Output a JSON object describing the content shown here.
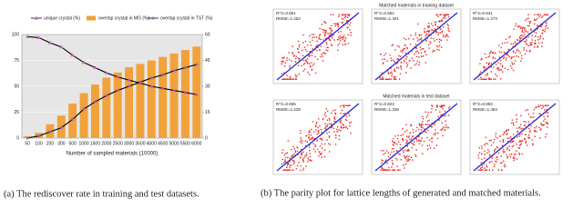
{
  "chart_data": [
    {
      "type": "combo",
      "x_label": "Number of sampled materials (10000)",
      "categories": [
        "50",
        "100",
        "200",
        "300",
        "500",
        "1000",
        "1500",
        "2000",
        "2500",
        "3000",
        "3500",
        "4000",
        "4500",
        "5000",
        "5500",
        "6000"
      ],
      "ylim": [
        0,
        100
      ],
      "yticks": [
        0,
        25,
        50,
        75,
        100
      ],
      "y2lim": [
        0,
        60
      ],
      "y2ticks": [
        0,
        15,
        30,
        45,
        60
      ],
      "grid": true,
      "line_color": "#000000",
      "background": "#e6e6e6",
      "series": [
        {
          "name": "unique crystal (%)",
          "type": "line",
          "marker": "triangle",
          "color": "#c65ac6",
          "values": [
            98,
            97,
            92,
            88,
            80,
            73,
            68,
            63,
            59,
            56,
            53,
            50,
            48,
            46,
            44,
            42
          ]
        },
        {
          "name": "overlap crystal in MG (%)",
          "type": "bar",
          "axis": "y2",
          "color": "#f2a23a",
          "values": [
            1,
            3,
            8,
            13,
            20,
            26,
            31,
            35,
            38,
            41,
            43,
            45,
            47,
            49,
            51,
            53
          ]
        },
        {
          "name": "overlap crystal in TST (%)",
          "type": "line",
          "marker": "star",
          "color": "#8a63c8",
          "values": [
            0,
            2,
            6,
            10,
            18,
            28,
            35,
            41,
            46,
            50,
            54,
            58,
            61,
            65,
            68,
            71
          ]
        }
      ]
    }
  ],
  "captions": [
    "(a) The rediscover rate in training and test datasets.",
    "(b) The parity plot for lattice lengths of generated and matched materials."
  ],
  "parity": {
    "row_titles": [
      "Matched materials in training dataset",
      "Matched materials in test dataset"
    ],
    "panels": [
      {
        "stats": [
          "R^2=0.851",
          "RMSE=1.252"
        ]
      },
      {
        "stats": [
          "R^2=0.852",
          "RMSE=1.301"
        ]
      },
      {
        "stats": [
          "R^2=0.841",
          "RMSE=1.273"
        ]
      },
      {
        "stats": [
          "R^2=0.865",
          "RMSE=1.229"
        ]
      },
      {
        "stats": [
          "R^2=0.823",
          "RMSE=1.339"
        ]
      },
      {
        "stats": [
          "R^2=0.853",
          "RMSE=1.484"
        ]
      }
    ]
  }
}
